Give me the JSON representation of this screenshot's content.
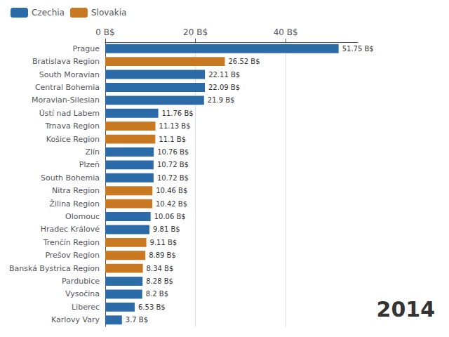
{
  "chart_data": {
    "type": "bar",
    "orientation": "horizontal",
    "annotations": [
      "2014"
    ],
    "categories": [
      "Prague",
      "Bratislava Region",
      "South Moravian",
      "Central Bohemia",
      "Moravian-Silesian",
      "Ústí nad Labem",
      "Trnava Region",
      "Košice Region",
      "Zlín",
      "Plzeň",
      "South Bohemia",
      "Nitra Region",
      "Žilina Region",
      "Olomouc",
      "Hradec Králové",
      "Trenčín Region",
      "Prešov Region",
      "Banská Bystrica Region",
      "Pardubice",
      "Vysočina",
      "Liberec",
      "Karlovy Vary"
    ],
    "series": [
      {
        "name": "Czechia",
        "color": "#2b6ca8",
        "values": [
          51.75,
          null,
          22.11,
          22.09,
          21.9,
          11.76,
          null,
          null,
          10.76,
          10.72,
          10.72,
          null,
          null,
          10.06,
          9.81,
          null,
          null,
          null,
          8.28,
          8.2,
          6.53,
          3.7
        ],
        "value_labels": [
          "51.75 B$",
          null,
          "22.11 B$",
          "22.09 B$",
          "21.9 B$",
          "11.76 B$",
          null,
          null,
          "10.76 B$",
          "10.72 B$",
          "10.72 B$",
          null,
          null,
          "10.06 B$",
          "9.81 B$",
          null,
          null,
          null,
          "8.28 B$",
          "8.2 B$",
          "6.53 B$",
          "3.7 B$"
        ]
      },
      {
        "name": "Slovakia",
        "color": "#c87820",
        "values": [
          null,
          26.52,
          null,
          null,
          null,
          null,
          11.13,
          11.1,
          null,
          null,
          null,
          10.46,
          10.42,
          null,
          null,
          9.11,
          8.89,
          8.34,
          null,
          null,
          null,
          null
        ],
        "value_labels": [
          null,
          "26.52 B$",
          null,
          null,
          null,
          null,
          "11.13 B$",
          "11.1 B$",
          null,
          null,
          null,
          "10.46 B$",
          "10.42 B$",
          null,
          null,
          "9.11 B$",
          "8.89 B$",
          "8.34 B$",
          null,
          null,
          null,
          null
        ]
      }
    ],
    "xlim": [
      0,
      56
    ],
    "xticks": [
      {
        "value": 0,
        "label": "0 B$"
      },
      {
        "value": 20,
        "label": "20 B$"
      },
      {
        "value": 40,
        "label": "40 B$"
      }
    ],
    "grid": true,
    "legend": "upper left",
    "data_labels": true
  }
}
